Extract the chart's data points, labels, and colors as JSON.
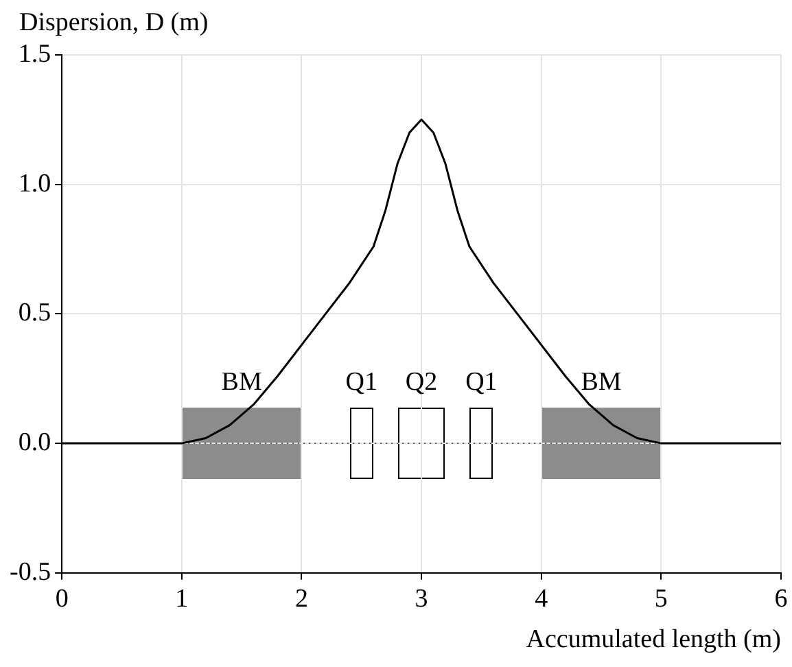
{
  "chart_data": {
    "type": "line",
    "xlabel": "Accumulated length (m)",
    "ylabel": "Dispersion, D (m)",
    "x": [
      0,
      1,
      1.2,
      1.4,
      1.6,
      1.8,
      2,
      2.2,
      2.4,
      2.6,
      2.7,
      2.8,
      2.9,
      3,
      3.1,
      3.2,
      3.3,
      3.4,
      3.6,
      3.8,
      4,
      4.2,
      4.4,
      4.6,
      4.8,
      5,
      6
    ],
    "series": [
      {
        "color": "#000000",
        "values": [
          0,
          0,
          0.02,
          0.07,
          0.15,
          0.26,
          0.38,
          0.5,
          0.62,
          0.76,
          0.9,
          1.08,
          1.2,
          1.25,
          1.2,
          1.08,
          0.9,
          0.76,
          0.62,
          0.5,
          0.38,
          0.26,
          0.15,
          0.07,
          0.02,
          0,
          0
        ]
      }
    ],
    "xlim": [
      0,
      6
    ],
    "xticks": [
      0,
      1,
      2,
      3,
      4,
      5,
      6
    ],
    "ylim": [
      -0.5,
      1.5
    ],
    "yticks": [
      {
        "value": -0.5,
        "label": "-0.5"
      },
      {
        "value": 0,
        "label": "0.0"
      },
      {
        "value": 0.5,
        "label": "0.5"
      },
      {
        "value": 1,
        "label": "1.0"
      },
      {
        "value": 1.5,
        "label": "1.5"
      }
    ],
    "grid": true,
    "marker": "none",
    "line_style": "solid",
    "legend": false,
    "ref_lines": [
      {
        "axis": "y",
        "value": 0,
        "line_style": "dotted",
        "color": "#555555"
      }
    ],
    "annotations": [
      "BM",
      "Q1",
      "Q2",
      "Q1",
      "BM"
    ]
  }
}
